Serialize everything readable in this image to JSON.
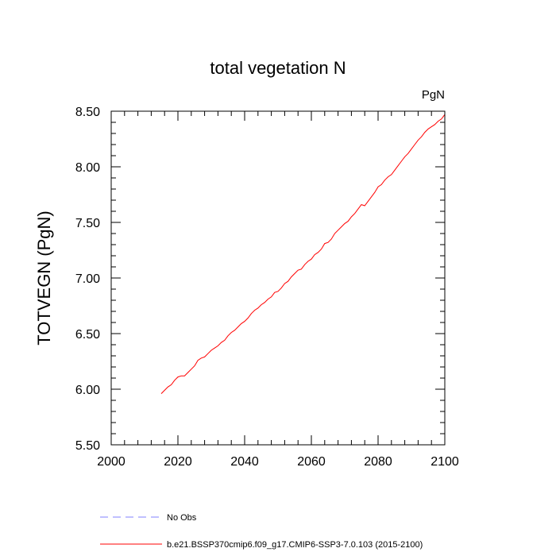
{
  "chart_data": {
    "type": "line",
    "title": "total vegetation N",
    "units_label": "PgN",
    "ylabel": "TOTVEGN  (PgN)",
    "xlabel": "",
    "xlim": [
      2000,
      2100
    ],
    "ylim": [
      5.5,
      8.5
    ],
    "x_ticks": [
      "2000",
      "2020",
      "2040",
      "2060",
      "2080",
      "2100"
    ],
    "y_ticks": [
      "5.50",
      "6.00",
      "6.50",
      "7.00",
      "7.50",
      "8.00",
      "8.50"
    ],
    "grid": false,
    "legend_position": "bottom",
    "series": [
      {
        "name": "No Obs",
        "color": "#8080ff",
        "style": "dashed",
        "points": []
      },
      {
        "name": "b.e21.BSSP370cmip6.f09_g17.CMIP6-SSP3-7.0.103 (2015-2100)",
        "color": "#ff0000",
        "style": "solid",
        "points": [
          [
            2015,
            5.96
          ],
          [
            2016,
            5.99
          ],
          [
            2017,
            6.02
          ],
          [
            2018,
            6.04
          ],
          [
            2019,
            6.08
          ],
          [
            2020,
            6.11
          ],
          [
            2021,
            6.12
          ],
          [
            2022,
            6.12
          ],
          [
            2023,
            6.15
          ],
          [
            2024,
            6.18
          ],
          [
            2025,
            6.21
          ],
          [
            2026,
            6.26
          ],
          [
            2027,
            6.28
          ],
          [
            2028,
            6.29
          ],
          [
            2029,
            6.32
          ],
          [
            2030,
            6.35
          ],
          [
            2031,
            6.37
          ],
          [
            2032,
            6.39
          ],
          [
            2033,
            6.42
          ],
          [
            2034,
            6.44
          ],
          [
            2035,
            6.48
          ],
          [
            2036,
            6.51
          ],
          [
            2037,
            6.53
          ],
          [
            2038,
            6.56
          ],
          [
            2039,
            6.59
          ],
          [
            2040,
            6.61
          ],
          [
            2041,
            6.64
          ],
          [
            2042,
            6.68
          ],
          [
            2043,
            6.71
          ],
          [
            2044,
            6.73
          ],
          [
            2045,
            6.76
          ],
          [
            2046,
            6.78
          ],
          [
            2047,
            6.81
          ],
          [
            2048,
            6.83
          ],
          [
            2049,
            6.87
          ],
          [
            2050,
            6.88
          ],
          [
            2051,
            6.91
          ],
          [
            2052,
            6.95
          ],
          [
            2053,
            6.97
          ],
          [
            2054,
            7.01
          ],
          [
            2055,
            7.04
          ],
          [
            2056,
            7.07
          ],
          [
            2057,
            7.08
          ],
          [
            2058,
            7.12
          ],
          [
            2059,
            7.15
          ],
          [
            2060,
            7.17
          ],
          [
            2061,
            7.21
          ],
          [
            2062,
            7.23
          ],
          [
            2063,
            7.26
          ],
          [
            2064,
            7.31
          ],
          [
            2065,
            7.32
          ],
          [
            2066,
            7.35
          ],
          [
            2067,
            7.4
          ],
          [
            2068,
            7.43
          ],
          [
            2069,
            7.46
          ],
          [
            2070,
            7.49
          ],
          [
            2071,
            7.51
          ],
          [
            2072,
            7.55
          ],
          [
            2073,
            7.58
          ],
          [
            2074,
            7.62
          ],
          [
            2075,
            7.66
          ],
          [
            2076,
            7.65
          ],
          [
            2077,
            7.69
          ],
          [
            2078,
            7.73
          ],
          [
            2079,
            7.77
          ],
          [
            2080,
            7.82
          ],
          [
            2081,
            7.84
          ],
          [
            2082,
            7.88
          ],
          [
            2083,
            7.91
          ],
          [
            2084,
            7.93
          ],
          [
            2085,
            7.97
          ],
          [
            2086,
            8.01
          ],
          [
            2087,
            8.05
          ],
          [
            2088,
            8.09
          ],
          [
            2089,
            8.12
          ],
          [
            2090,
            8.16
          ],
          [
            2091,
            8.2
          ],
          [
            2092,
            8.24
          ],
          [
            2093,
            8.27
          ],
          [
            2094,
            8.31
          ],
          [
            2095,
            8.34
          ],
          [
            2096,
            8.36
          ],
          [
            2097,
            8.38
          ],
          [
            2098,
            8.41
          ],
          [
            2099,
            8.43
          ],
          [
            2100,
            8.47
          ]
        ]
      }
    ]
  }
}
